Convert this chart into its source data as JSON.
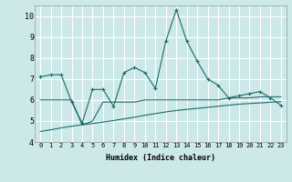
{
  "xlabel": "Humidex (Indice chaleur)",
  "bg_color": "#cce8e8",
  "grid_color": "#ffffff",
  "line_color": "#1a6b6b",
  "x_values": [
    0,
    1,
    2,
    3,
    4,
    5,
    6,
    7,
    8,
    9,
    10,
    11,
    12,
    13,
    14,
    15,
    16,
    17,
    18,
    19,
    20,
    21,
    22,
    23
  ],
  "line1": [
    7.1,
    7.2,
    7.2,
    5.9,
    4.9,
    6.5,
    6.5,
    5.7,
    7.3,
    7.55,
    7.3,
    6.55,
    8.8,
    10.3,
    8.8,
    7.85,
    7.0,
    6.7,
    6.1,
    6.2,
    6.3,
    6.4,
    6.1,
    5.75
  ],
  "line2": [
    6.0,
    6.0,
    6.0,
    6.0,
    4.8,
    5.0,
    5.9,
    5.9,
    5.9,
    5.9,
    6.0,
    6.0,
    6.0,
    6.0,
    6.0,
    6.0,
    6.0,
    6.0,
    6.1,
    6.1,
    6.1,
    6.15,
    6.15,
    6.15
  ],
  "line3": [
    4.5,
    4.58,
    4.67,
    4.75,
    4.82,
    4.88,
    4.95,
    5.02,
    5.1,
    5.18,
    5.27,
    5.35,
    5.43,
    5.5,
    5.55,
    5.6,
    5.65,
    5.7,
    5.75,
    5.8,
    5.83,
    5.86,
    5.89,
    5.92
  ],
  "ylim": [
    4,
    10.5
  ],
  "yticks": [
    4,
    5,
    6,
    7,
    8,
    9,
    10
  ],
  "xlim": [
    -0.5,
    23.5
  ]
}
